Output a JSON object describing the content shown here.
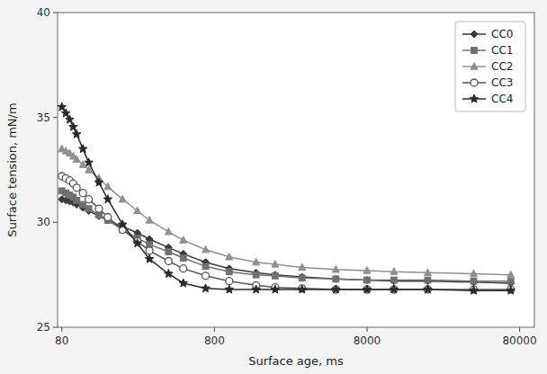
{
  "chart_data": {
    "type": "line",
    "xlabel": "Surface age, ms",
    "ylabel": "Surface tension, mN/m",
    "log": "x",
    "grid": false,
    "legend": "upper right",
    "xlim": [
      75,
      100000
    ],
    "ylim": [
      25,
      40
    ],
    "xticks": [
      80,
      800,
      8000,
      80000
    ],
    "yticks": [
      25,
      30,
      35,
      40
    ],
    "x": [
      80,
      85,
      90,
      95,
      100,
      110,
      120,
      140,
      160,
      200,
      250,
      300,
      400,
      500,
      700,
      1000,
      1500,
      2000,
      3000,
      5000,
      8000,
      12000,
      20000,
      40000,
      70000
    ],
    "series": [
      {
        "name": "CC0",
        "color": "#3a3a3a",
        "marker": "diamond",
        "values": [
          31.1,
          31.05,
          31.0,
          30.95,
          30.85,
          30.7,
          30.55,
          30.3,
          30.1,
          29.8,
          29.5,
          29.2,
          28.8,
          28.5,
          28.1,
          27.8,
          27.6,
          27.5,
          27.4,
          27.3,
          27.25,
          27.2,
          27.2,
          27.15,
          27.1
        ]
      },
      {
        "name": "CC1",
        "color": "#707070",
        "marker": "square",
        "values": [
          31.5,
          31.4,
          31.3,
          31.2,
          31.05,
          30.85,
          30.65,
          30.35,
          30.1,
          29.65,
          29.25,
          28.95,
          28.6,
          28.3,
          27.9,
          27.65,
          27.5,
          27.45,
          27.35,
          27.3,
          27.25,
          27.25,
          27.25,
          27.2,
          27.2
        ]
      },
      {
        "name": "CC2",
        "color": "#909090",
        "marker": "triangle",
        "values": [
          33.5,
          33.4,
          33.3,
          33.15,
          33.0,
          32.75,
          32.5,
          32.1,
          31.7,
          31.1,
          30.55,
          30.1,
          29.55,
          29.15,
          28.7,
          28.35,
          28.1,
          28.0,
          27.85,
          27.75,
          27.7,
          27.65,
          27.6,
          27.55,
          27.5
        ]
      },
      {
        "name": "CC3",
        "color": "#555555",
        "marker": "circle",
        "values": [
          32.2,
          32.1,
          32.0,
          31.85,
          31.65,
          31.4,
          31.1,
          30.65,
          30.25,
          29.65,
          29.1,
          28.65,
          28.15,
          27.8,
          27.45,
          27.2,
          27.0,
          26.9,
          26.85,
          26.8,
          26.8,
          26.8,
          26.8,
          26.8,
          26.8
        ]
      },
      {
        "name": "CC4",
        "color": "#2a2a2a",
        "marker": "star",
        "values": [
          35.5,
          35.2,
          34.9,
          34.55,
          34.2,
          33.5,
          32.85,
          31.9,
          31.1,
          29.9,
          29.0,
          28.25,
          27.55,
          27.1,
          26.85,
          26.8,
          26.8,
          26.8,
          26.8,
          26.8,
          26.8,
          26.8,
          26.8,
          26.75,
          26.75
        ]
      }
    ]
  }
}
